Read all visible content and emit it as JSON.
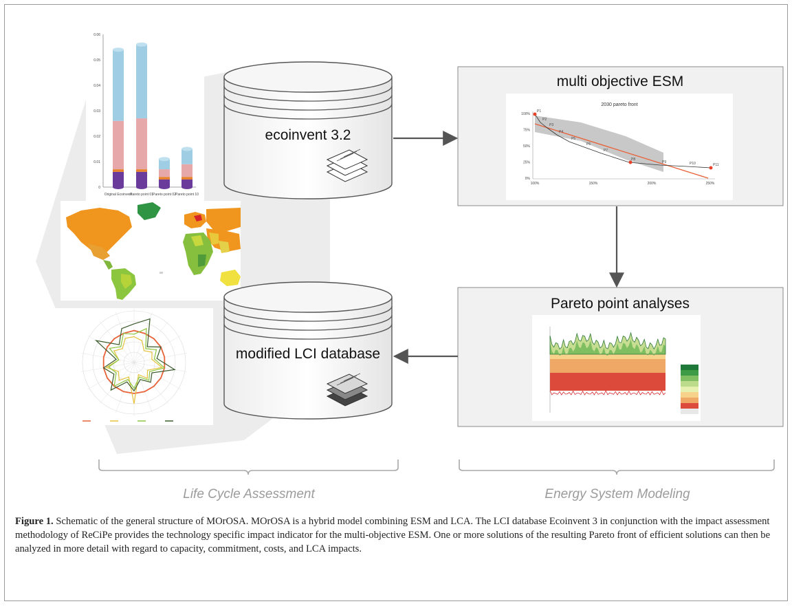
{
  "databases": {
    "top": "ecoinvent 3.2",
    "bottom": "modified LCI database"
  },
  "panels": {
    "esm_title": "multi objective ESM",
    "esm_chart_title": "2030 pareto front",
    "pareto_title": "Pareto point analyses"
  },
  "sections": {
    "lca": "Life Cycle Assessment",
    "esm": "Energy System Modeling"
  },
  "bar_chart": {
    "categories": [
      "Original Ecoinvent",
      "Pareto point 01",
      "Pareto point 02",
      "Pareto point 10"
    ],
    "ticks": [
      "0",
      "0.01",
      "0.02",
      "0.03",
      "0.04",
      "0.05",
      "0.06"
    ]
  },
  "pareto_chart": {
    "y_ticks": [
      "100%",
      "75%",
      "50%",
      "25%",
      "0%"
    ],
    "x_ticks": [
      "100%",
      "150%",
      "200%",
      "250%"
    ],
    "point_labels": [
      "P1",
      "P2",
      "P3",
      "P4",
      "P5",
      "P6",
      "P7",
      "P8",
      "P9",
      "P10",
      "P11"
    ]
  },
  "caption": {
    "label": "Figure 1.",
    "text": " Schematic of the general structure of MOrOSA. MOrOSA is a hybrid model combining ESM and LCA. The LCI database Ecoinvent 3 in conjunction with the impact assessment methodology of ReCiPe provides the technology specific impact indicator for the multi-objective ESM. One or more solutions of the resulting Pareto front of efficient solutions can then be analyzed in more detail with regard to capacity, commitment, costs, and LCA impacts."
  },
  "colors": {
    "arrow": "#555555",
    "bar_blue": "#9fcde3",
    "bar_pink": "#e6a8a8",
    "bar_orange": "#e8822a",
    "bar_purple": "#6a3b9a",
    "pareto_line": "#e8633a"
  }
}
